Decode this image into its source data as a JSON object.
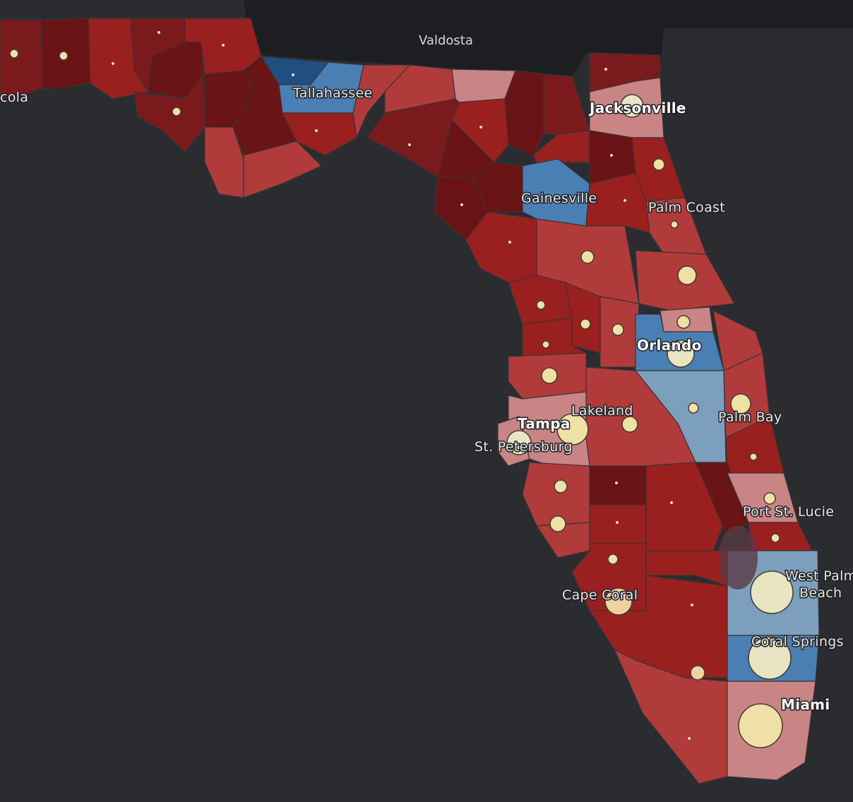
{
  "colors": {
    "background_water": "#2b2c30",
    "neighbor_land": "#1d1e21",
    "strong_rep": "#6b1416",
    "lean_rep_dark": "#7a1a1c",
    "rep": "#9a1f1f",
    "lean_rep": "#b13a3a",
    "tilt_rep": "#c98585",
    "tilt_dem": "#7c9fbe",
    "lean_dem": "#4a7fb3",
    "strong_dem": "#1f4f7f",
    "lake": "#5a3a44",
    "city_dot": "#efe1a6",
    "city_dot_large": "#e8e6c2"
  },
  "regions": [
    {
      "name": "Valdosta"
    }
  ],
  "cities": [
    {
      "name": "Jacksonville",
      "major": true
    },
    {
      "name": "Tallahassee",
      "major": false
    },
    {
      "name": "Gainesville",
      "major": false
    },
    {
      "name": "Palm Coast",
      "major": false
    },
    {
      "name": "Orlando",
      "major": true
    },
    {
      "name": "Lakeland",
      "major": false
    },
    {
      "name": "Tampa",
      "major": true
    },
    {
      "name": "St. Petersburg",
      "major": false
    },
    {
      "name": "Palm Bay",
      "major": false
    },
    {
      "name": "Port St. Lucie",
      "major": false
    },
    {
      "name": "Cape Coral",
      "major": false
    },
    {
      "name": "Coral Springs",
      "major": false
    },
    {
      "name": "Miami",
      "major": true
    },
    {
      "name": "cola",
      "major": false
    }
  ],
  "west_palm_beach": {
    "line1": "West Palm",
    "line2": "Beach"
  }
}
